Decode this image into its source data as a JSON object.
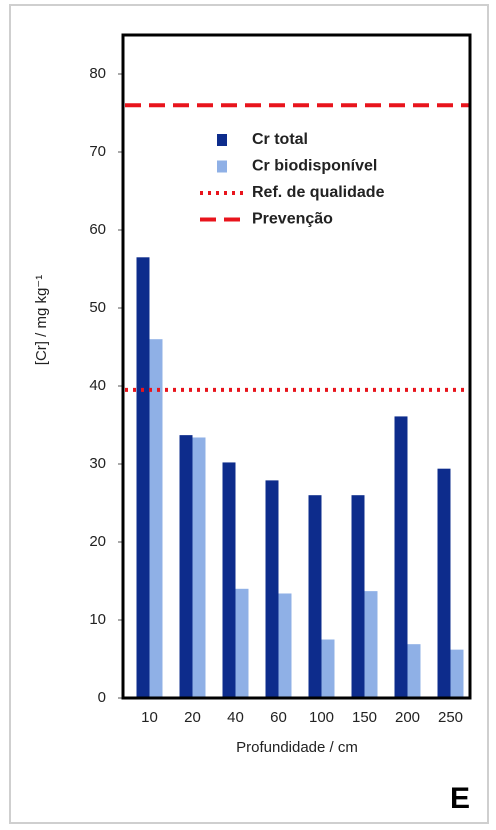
{
  "chart_data": {
    "type": "bar",
    "y_label": "[Cr] / mg kg⁻¹",
    "x_label": "Profundidade / cm",
    "panel_label": "E",
    "categories": [
      "10",
      "20",
      "40",
      "60",
      "100",
      "150",
      "200",
      "250"
    ],
    "series": [
      {
        "name": "Cr total",
        "color": "#0d2c8c",
        "values": [
          56.5,
          33.7,
          30.2,
          27.9,
          26.0,
          26.0,
          36.1,
          29.4
        ]
      },
      {
        "name": "Cr biodisponível",
        "color": "#8fb0e6",
        "values": [
          46.0,
          33.4,
          14.0,
          13.4,
          7.5,
          13.7,
          6.9,
          6.2
        ]
      }
    ],
    "reference_lines": [
      {
        "name": "Ref. de qualidade",
        "value": 39.5,
        "style": "dotted",
        "color": "#e8141c"
      },
      {
        "name": "Prevenção",
        "value": 76,
        "style": "dashed",
        "color": "#e8141c"
      }
    ],
    "ylim": [
      0,
      85
    ],
    "yticks": [
      0,
      10,
      20,
      30,
      40,
      50,
      60,
      70,
      80
    ],
    "grid": false
  }
}
